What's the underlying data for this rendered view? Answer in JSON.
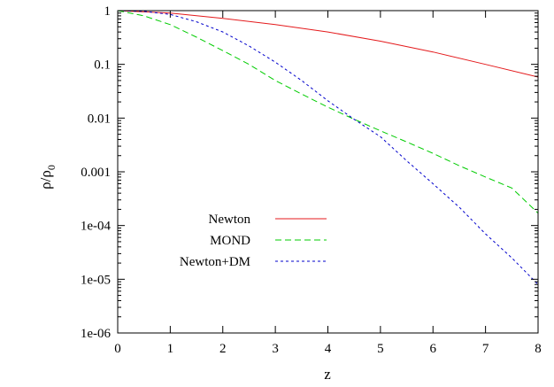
{
  "chart_data": {
    "type": "line",
    "title": "",
    "xlabel": "z",
    "ylabel": "ρ/ρ",
    "ylabel_subscript": "0",
    "xlim": [
      0,
      8
    ],
    "ylim": [
      1e-06,
      1
    ],
    "yscale": "log",
    "grid": false,
    "legend_position": "lower-left",
    "x_ticks": [
      {
        "v": 0,
        "label": "0"
      },
      {
        "v": 1,
        "label": "1"
      },
      {
        "v": 2,
        "label": "2"
      },
      {
        "v": 3,
        "label": "3"
      },
      {
        "v": 4,
        "label": "4"
      },
      {
        "v": 5,
        "label": "5"
      },
      {
        "v": 6,
        "label": "6"
      },
      {
        "v": 7,
        "label": "7"
      },
      {
        "v": 8,
        "label": "8"
      }
    ],
    "y_ticks": [
      {
        "v": 1,
        "label": "1"
      },
      {
        "v": 0.1,
        "label": "0.1"
      },
      {
        "v": 0.01,
        "label": "0.01"
      },
      {
        "v": 0.001,
        "label": "0.001"
      },
      {
        "v": 0.0001,
        "label": "1e-04"
      },
      {
        "v": 1e-05,
        "label": "1e-05"
      },
      {
        "v": 1e-06,
        "label": "1e-06"
      }
    ],
    "series": [
      {
        "name": "Newton",
        "color": "#e41a1c",
        "dash": "",
        "x": [
          0,
          1,
          2,
          3,
          4,
          5,
          6,
          7,
          8
        ],
        "y": [
          1.0,
          0.9,
          0.72,
          0.55,
          0.4,
          0.27,
          0.17,
          0.1,
          0.058
        ]
      },
      {
        "name": "MOND",
        "color": "#00cc00",
        "dash": "7,4",
        "x": [
          0,
          0.5,
          1,
          1.5,
          2,
          2.5,
          3,
          3.5,
          4,
          4.5,
          5,
          5.5,
          6,
          6.5,
          7,
          7.5,
          8
        ],
        "y": [
          1.0,
          0.8,
          0.55,
          0.32,
          0.18,
          0.1,
          0.05,
          0.028,
          0.016,
          0.0095,
          0.0058,
          0.0036,
          0.0022,
          0.0013,
          0.0008,
          0.0005,
          0.00017
        ]
      },
      {
        "name": "Newton+DM",
        "color": "#0000cc",
        "dash": "3,3",
        "x": [
          0,
          0.5,
          1,
          1.5,
          2,
          2.5,
          3,
          3.5,
          4,
          4.5,
          5,
          5.5,
          6,
          6.5,
          7,
          7.5,
          8
        ],
        "y": [
          1.0,
          0.97,
          0.85,
          0.62,
          0.4,
          0.22,
          0.11,
          0.05,
          0.021,
          0.0095,
          0.0045,
          0.0016,
          0.0006,
          0.00022,
          7e-05,
          2.5e-05,
          8e-06
        ]
      }
    ]
  }
}
